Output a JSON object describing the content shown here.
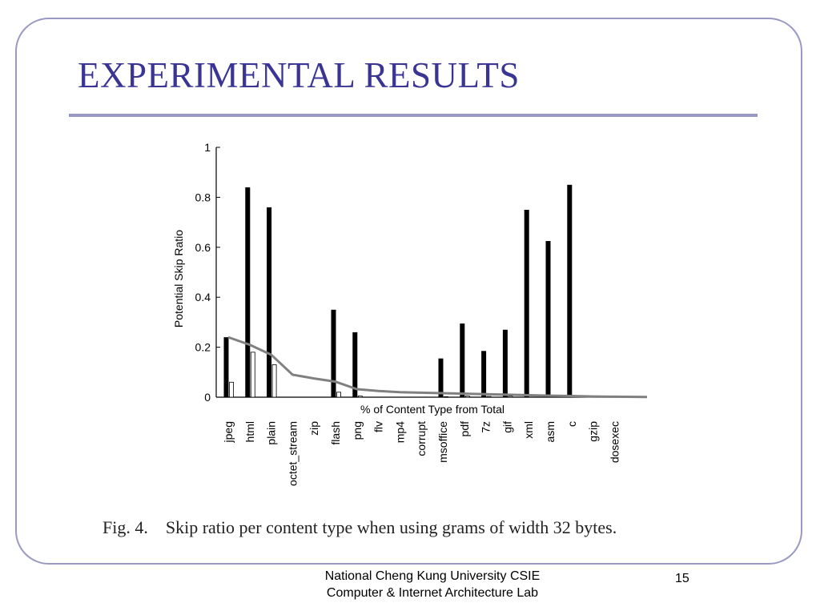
{
  "slide": {
    "title": "EXPERIMENTAL RESULTS",
    "caption": "Fig. 4.    Skip ratio per content type when using grams of width 32 bytes.",
    "footer_line1": "National Cheng Kung University CSIE",
    "footer_line2": "Computer & Internet Architecture Lab",
    "page_number": "15",
    "accent_color": "#3a3594",
    "frame_color": "#9a99c4"
  },
  "chart_data": {
    "type": "bar",
    "ylabel": "Potential Skip Ratio",
    "xlabel": "% of Content Type from Total",
    "ylim": [
      0,
      1
    ],
    "yticks": [
      "0",
      "0.2",
      "0.4",
      "0.6",
      "0.8",
      "1"
    ],
    "grid": false,
    "categories": [
      "jpeg",
      "html",
      "plain",
      "octet_stream",
      "zip",
      "flash",
      "png",
      "flv",
      "mp4",
      "corrupt",
      "msoffice",
      "pdf",
      "7z",
      "gif",
      "xml",
      "asm",
      "c",
      "gzip",
      "dosexec"
    ],
    "series": [
      {
        "values": [
          0.24,
          0.84,
          0.76,
          0,
          0,
          0.35,
          0.26,
          0,
          0,
          0,
          0.155,
          0.295,
          0.185,
          0.27,
          0.75,
          0.625,
          0.85,
          0,
          0
        ],
        "color": "#000000",
        "style": "solid-bar"
      },
      {
        "values": [
          0.06,
          0.18,
          0.13,
          0,
          0,
          0.02,
          0.005,
          0,
          0,
          0,
          0.002,
          0.005,
          0.003,
          0.004,
          0,
          0,
          0,
          0,
          0
        ],
        "color": "#ffffff",
        "style": "outlined-bar"
      },
      {
        "values": [
          0.24,
          0.21,
          0.17,
          0.09,
          0.075,
          0.062,
          0.032,
          0.025,
          0.02,
          0.018,
          0.016,
          0.014,
          0.012,
          0.01,
          0.008,
          0.006,
          0.005,
          0.003,
          0.002
        ],
        "color": "#808080",
        "style": "line"
      }
    ]
  }
}
